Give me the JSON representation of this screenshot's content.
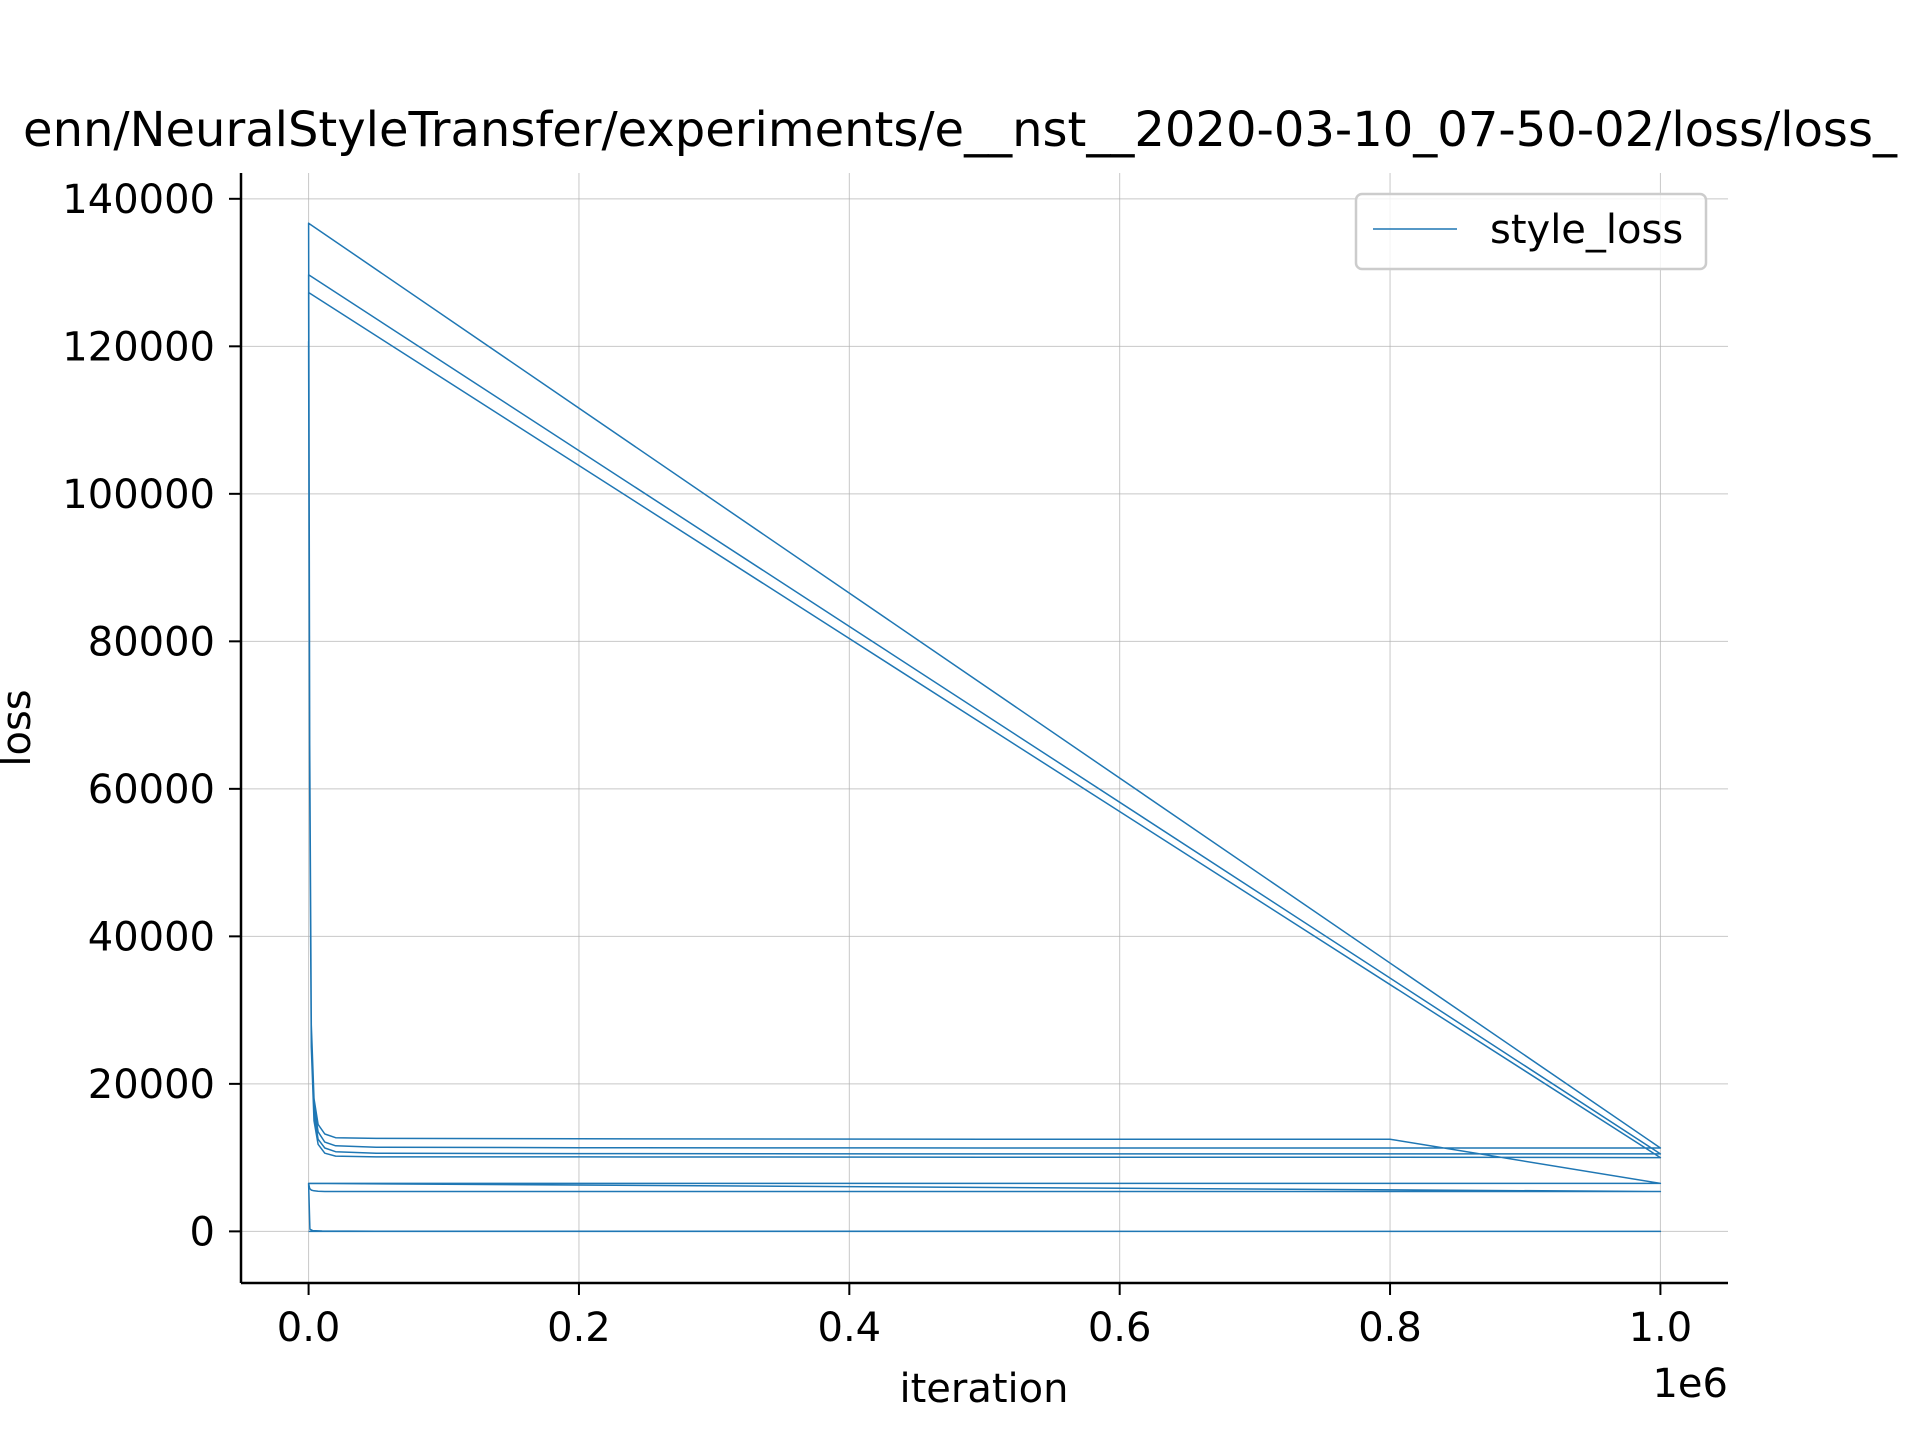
{
  "chart_data": {
    "type": "line",
    "title": "enn/NeuralStyleTransfer/experiments/e__nst__2020-03-10_07-50-02/loss/loss_",
    "xlabel": "iteration",
    "ylabel": "loss",
    "x_offset_label": "1e6",
    "xlim": [
      -0.05,
      1.05
    ],
    "ylim": [
      -7000,
      143500
    ],
    "xticks": [
      0.0,
      0.2,
      0.4,
      0.6,
      0.8,
      1.0
    ],
    "xtick_labels": [
      "0.0",
      "0.2",
      "0.4",
      "0.6",
      "0.8",
      "1.0"
    ],
    "yticks": [
      0,
      20000,
      40000,
      60000,
      80000,
      100000,
      120000,
      140000
    ],
    "ytick_labels": [
      "0",
      "20000",
      "40000",
      "60000",
      "80000",
      "100000",
      "120000",
      "140000"
    ],
    "grid": true,
    "legend_position": "top-right",
    "color": "#1f77b4",
    "series": [
      {
        "name": "style_loss",
        "x": [
          0,
          0.0008,
          0.002,
          0.004,
          0.007,
          0.012,
          0.02,
          0.05,
          0.2,
          0.5,
          0.8,
          1.0,
          0,
          0.0008,
          0.002,
          0.004,
          0.007,
          0.012,
          0.02,
          0.05,
          0.2,
          0.5,
          0.8,
          1.0,
          0,
          0.0008,
          0.002,
          0.004,
          0.007,
          0.012,
          0.02,
          0.05,
          0.2,
          0.5,
          0.8,
          1.0,
          0,
          0.0008,
          0.002,
          0.004,
          0.007,
          0.012,
          0.02,
          0.05,
          0.2,
          0.5,
          0.8,
          1.0,
          0,
          0.0008,
          0.002,
          0.004,
          0.007,
          0.012,
          0.02,
          0.05,
          0.2,
          0.5,
          0.742
        ],
        "y": [
          120700,
          60000,
          25000,
          15000,
          11800,
          10600,
          10200,
          10100,
          10100,
          10050,
          10050,
          10000,
          127300,
          62000,
          26000,
          16000,
          12500,
          11300,
          10800,
          10600,
          10550,
          10500,
          10500,
          10500,
          129700,
          64000,
          27000,
          17000,
          13500,
          12100,
          11600,
          11400,
          11350,
          11300,
          11300,
          11300,
          136700,
          66000,
          28000,
          18000,
          14500,
          13200,
          12700,
          12600,
          12550,
          12500,
          12500,
          6500,
          6500,
          5800,
          5600,
          5500,
          5450,
          5400,
          5400,
          5400,
          5400,
          5400,
          5400
        ],
        "tail": [
          {
            "x": [
              1.0,
              0,
              0.001,
              0.003,
              0.01,
              0.05,
              0.5,
              1.0
            ],
            "y": [
              5400,
              6500,
              300,
              100,
              50,
              20,
              10,
              0
            ]
          },
          {
            "x": [
              1.0,
              0
            ],
            "y": [
              0,
              0
            ]
          }
        ]
      }
    ]
  }
}
